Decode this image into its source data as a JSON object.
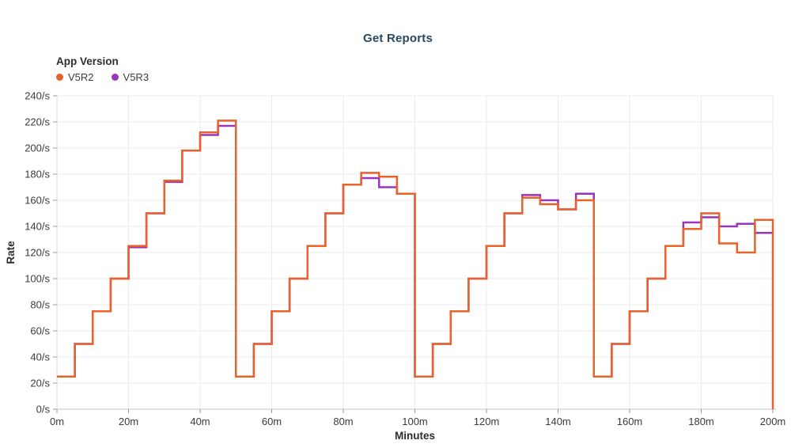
{
  "title": "Get Reports",
  "title_color": "#27485f",
  "legend": {
    "title": "App Version",
    "items": [
      {
        "label": "V5R2",
        "color": "#e8622a"
      },
      {
        "label": "V5R3",
        "color": "#9935bd"
      }
    ]
  },
  "chart_data": {
    "type": "line",
    "subtype": "step-after",
    "title": "Get Reports",
    "xlabel": "Minutes",
    "ylabel": "Rate",
    "xlim": [
      0,
      200
    ],
    "ylim": [
      0,
      240
    ],
    "grid": true,
    "legend_position": "top-left",
    "x_tick_labels": [
      "0m",
      "20m",
      "40m",
      "60m",
      "80m",
      "100m",
      "120m",
      "140m",
      "160m",
      "180m",
      "200m"
    ],
    "x_tick_values": [
      0,
      20,
      40,
      60,
      80,
      100,
      120,
      140,
      160,
      180,
      200
    ],
    "y_tick_labels": [
      "0/s",
      "20/s",
      "40/s",
      "60/s",
      "80/s",
      "100/s",
      "120/s",
      "140/s",
      "160/s",
      "180/s",
      "200/s",
      "220/s",
      "240/s"
    ],
    "y_tick_values": [
      0,
      20,
      40,
      60,
      80,
      100,
      120,
      140,
      160,
      180,
      200,
      220,
      240
    ],
    "step_minutes": 5,
    "series": [
      {
        "name": "V5R3",
        "color": "#9935bd",
        "drops_to_zero_at_end": false,
        "values": [
          25,
          50,
          75,
          100,
          124,
          150,
          174,
          198,
          210,
          217,
          25,
          50,
          75,
          100,
          125,
          150,
          172,
          177,
          170,
          165,
          25,
          50,
          75,
          100,
          125,
          150,
          164,
          160,
          153,
          165,
          25,
          50,
          75,
          100,
          125,
          143,
          147,
          140,
          142,
          135
        ]
      },
      {
        "name": "V5R2",
        "color": "#e8622a",
        "drops_to_zero_at_end": true,
        "values": [
          25,
          50,
          75,
          100,
          125,
          150,
          175,
          198,
          212,
          221,
          25,
          50,
          75,
          100,
          125,
          150,
          172,
          181,
          178,
          165,
          25,
          50,
          75,
          100,
          125,
          150,
          162,
          157,
          153,
          160,
          25,
          50,
          75,
          100,
          125,
          138,
          150,
          127,
          120,
          145
        ]
      }
    ],
    "colors": {
      "grid": "#ebebeb",
      "axis_line": "#c4c4c4",
      "tick_mark": "#9a9a9a",
      "tick_label": "#3b3b3b",
      "axis_title": "#2d2d2d"
    }
  }
}
